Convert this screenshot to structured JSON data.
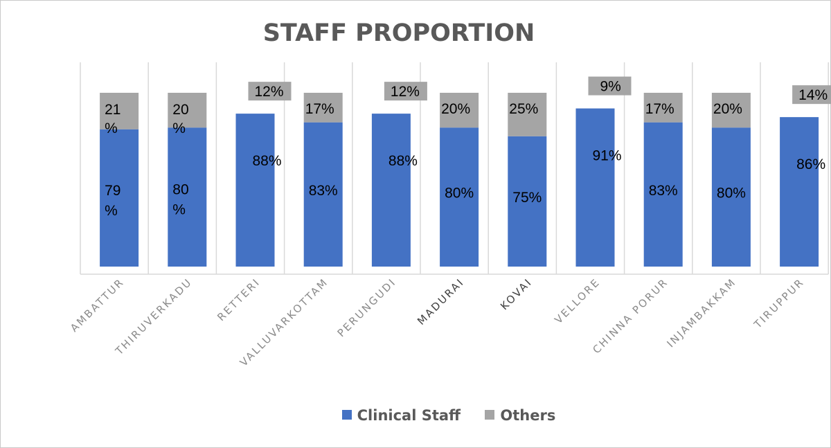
{
  "chart_data": {
    "type": "bar",
    "stacked": true,
    "title": "STAFF PROPORTION",
    "categories": [
      "AMBATTUR",
      "THIRUVERKADU",
      "RETTERI",
      "VALLUVARKOTTAM",
      "PERUNGUDI",
      "MADURAI",
      "KOVAI",
      "VELLORE",
      "CHINNA PORUR",
      "INJAMBAKKAM",
      "TIRUPPUR"
    ],
    "series": [
      {
        "name": "Clinical Staff",
        "color": "#4472C4",
        "values": [
          79,
          80,
          88,
          83,
          88,
          80,
          75,
          91,
          83,
          80,
          86
        ],
        "labels": [
          "79\n%",
          "80\n%",
          "88%",
          "83%",
          "88%",
          "80%",
          "75%",
          "91%",
          "83%",
          "80%",
          "86%"
        ]
      },
      {
        "name": "Others",
        "color": "#A5A5A5",
        "values": [
          21,
          20,
          12,
          17,
          12,
          20,
          25,
          9,
          17,
          20,
          14
        ],
        "labels": [
          "21\n%",
          "20\n%",
          "12%",
          "17%",
          "12%",
          "20%",
          "25%",
          "9%",
          "17%",
          "20%",
          "14%"
        ]
      }
    ],
    "ylim": [
      0,
      100
    ],
    "legend_position": "bottom",
    "grid": "vertical separators"
  },
  "legend": {
    "clinical_label": "Clinical Staff",
    "others_label": "Others"
  }
}
